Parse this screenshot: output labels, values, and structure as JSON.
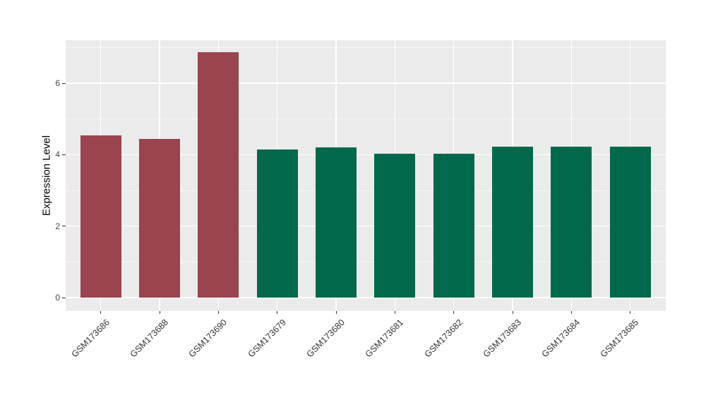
{
  "style": {
    "figure_background": "#FFFFFF",
    "panel_background": "#EBEBEB",
    "grid_major_color": "#FFFFFF",
    "grid_minor_color": "rgba(255,255,255,0.55)",
    "axis_text_color": "#4A4A4A",
    "axis_title_color": "#000000",
    "tick_mark_color": "#333333",
    "group_colors": {
      "maroon": "#9A4450",
      "green": "#01694B"
    }
  },
  "chart_data": {
    "type": "bar",
    "title": "",
    "xlabel": "",
    "ylabel": "Expression Level",
    "categories": [
      "GSM173686",
      "GSM173688",
      "GSM173690",
      "GSM173679",
      "GSM173680",
      "GSM173681",
      "GSM173682",
      "GSM173683",
      "GSM173684",
      "GSM173685"
    ],
    "values": [
      4.55,
      4.45,
      6.88,
      4.15,
      4.2,
      4.02,
      4.02,
      4.22,
      4.22,
      4.22
    ],
    "bar_colors": [
      "#9A4450",
      "#9A4450",
      "#9A4450",
      "#01694B",
      "#01694B",
      "#01694B",
      "#01694B",
      "#01694B",
      "#01694B",
      "#01694B"
    ],
    "y_ticks": [
      0,
      2,
      4,
      6
    ],
    "y_minor_ticks": [
      1,
      3,
      5,
      7
    ],
    "ylim": [
      -0.37,
      7.21
    ],
    "grid": true,
    "legend": "none",
    "x_tick_rotation": -45
  }
}
